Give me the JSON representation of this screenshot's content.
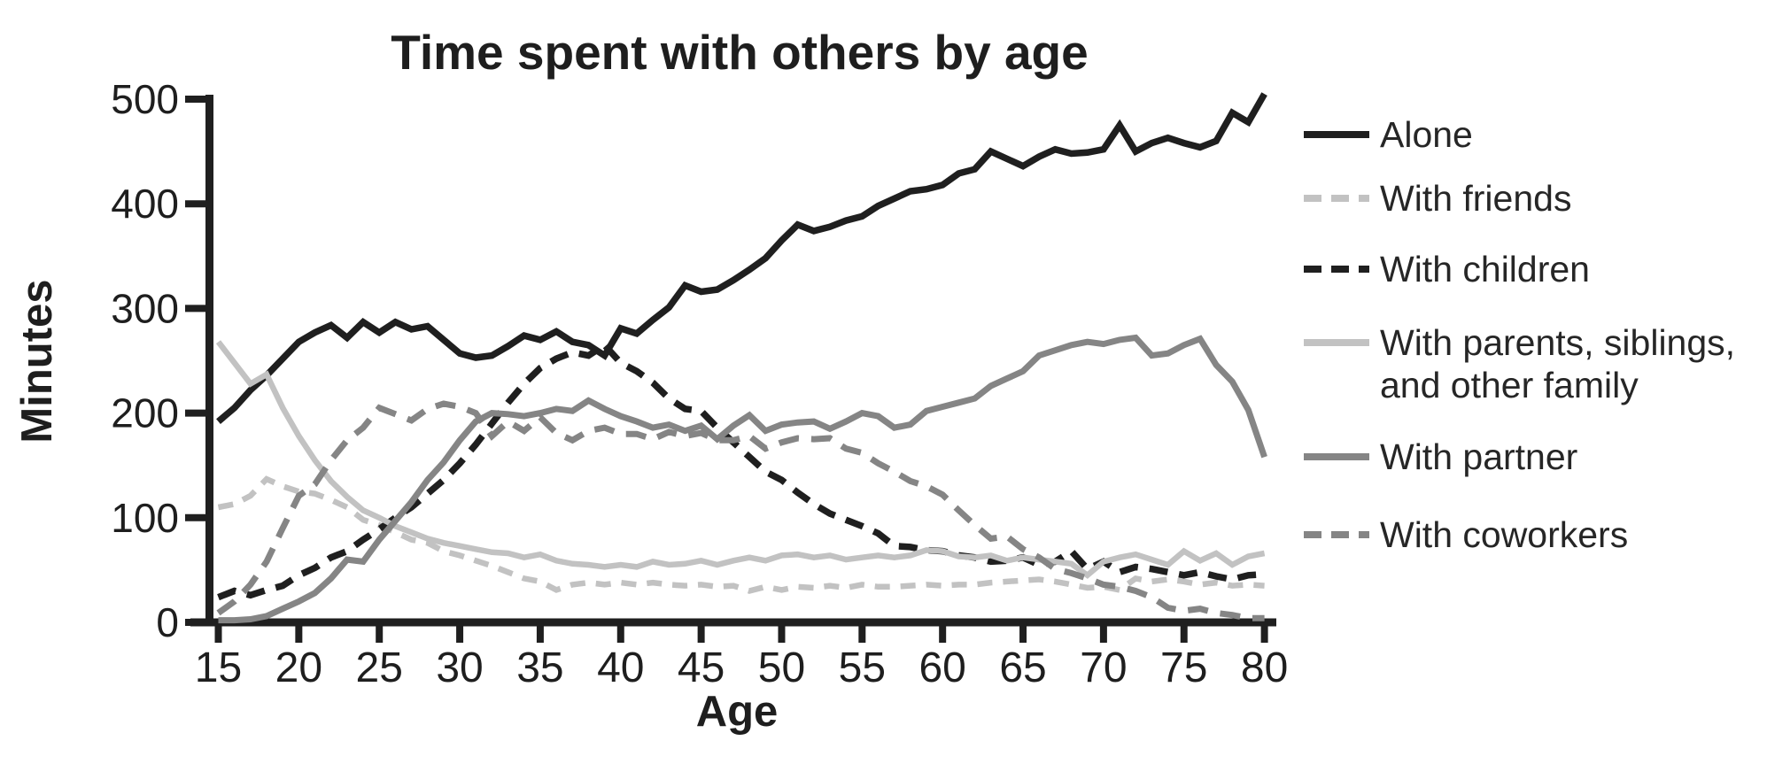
{
  "chart_data": {
    "type": "line",
    "title": "Time spent with others by age",
    "xlabel": "Age",
    "ylabel": "Minutes",
    "xlim": [
      15,
      81
    ],
    "ylim": [
      0,
      500
    ],
    "x_ticks": [
      15,
      20,
      25,
      30,
      35,
      40,
      45,
      50,
      55,
      60,
      65,
      70,
      75,
      80
    ],
    "y_ticks": [
      0,
      100,
      200,
      300,
      400,
      500
    ],
    "grid": false,
    "legend_position": "right",
    "axis_color": "#1f1f1f",
    "background_color": "#ffffff",
    "x": [
      15,
      16,
      17,
      18,
      19,
      20,
      21,
      22,
      23,
      24,
      25,
      26,
      27,
      28,
      29,
      30,
      31,
      32,
      33,
      34,
      35,
      36,
      37,
      38,
      39,
      40,
      41,
      42,
      43,
      44,
      45,
      46,
      47,
      48,
      49,
      50,
      51,
      52,
      53,
      54,
      55,
      56,
      57,
      58,
      59,
      60,
      61,
      62,
      63,
      64,
      65,
      66,
      67,
      68,
      69,
      70,
      71,
      72,
      73,
      74,
      75,
      76,
      77,
      78,
      79,
      80
    ],
    "series": [
      {
        "name": "Alone",
        "legend_lines": [
          "Alone"
        ],
        "color": "#1f1f1f",
        "style": "solid",
        "values": [
          192,
          205,
          222,
          236,
          252,
          268,
          277,
          284,
          272,
          287,
          277,
          287,
          280,
          283,
          270,
          257,
          253,
          255,
          264,
          274,
          270,
          278,
          268,
          265,
          255,
          281,
          276,
          289,
          301,
          322,
          316,
          318,
          327,
          337,
          348,
          365,
          380,
          374,
          378,
          384,
          388,
          398,
          405,
          412,
          414,
          418,
          429,
          433,
          450,
          443,
          436,
          445,
          452,
          448,
          449,
          452,
          475,
          450,
          458,
          463,
          458,
          454,
          460,
          487,
          478,
          505
        ]
      },
      {
        "name": "With friends",
        "legend_lines": [
          "With friends"
        ],
        "color": "#c2c2c2",
        "style": "dashed",
        "values": [
          110,
          113,
          121,
          137,
          130,
          125,
          123,
          117,
          110,
          98,
          93,
          86,
          79,
          76,
          68,
          64,
          59,
          54,
          48,
          42,
          39,
          31,
          36,
          38,
          36,
          38,
          36,
          38,
          36,
          35,
          36,
          34,
          35,
          30,
          34,
          31,
          34,
          33,
          35,
          33,
          36,
          34,
          34,
          35,
          36,
          35,
          36,
          36,
          38,
          39,
          40,
          41,
          39,
          36,
          33,
          34,
          31,
          42,
          39,
          41,
          39,
          36,
          38,
          35,
          36,
          35
        ]
      },
      {
        "name": "With children",
        "legend_lines": [
          "With children"
        ],
        "color": "#1f1f1f",
        "style": "dashed",
        "values": [
          24,
          30,
          26,
          31,
          35,
          45,
          52,
          62,
          68,
          79,
          89,
          100,
          110,
          123,
          136,
          152,
          170,
          190,
          210,
          228,
          243,
          252,
          258,
          255,
          265,
          248,
          240,
          229,
          214,
          204,
          202,
          186,
          172,
          158,
          144,
          136,
          124,
          113,
          104,
          98,
          92,
          85,
          73,
          72,
          69,
          68,
          64,
          62,
          58,
          59,
          62,
          55,
          58,
          68,
          51,
          58,
          48,
          53,
          51,
          48,
          45,
          48,
          44,
          41,
          45,
          46
        ]
      },
      {
        "name": "With parents, siblings, and other family",
        "legend_lines": [
          "With parents, siblings,",
          "and other family"
        ],
        "color": "#c2c2c2",
        "style": "solid",
        "values": [
          268,
          248,
          228,
          237,
          205,
          178,
          155,
          135,
          120,
          107,
          100,
          92,
          86,
          80,
          76,
          73,
          70,
          67,
          66,
          62,
          65,
          59,
          56,
          55,
          53,
          55,
          53,
          58,
          55,
          56,
          59,
          55,
          59,
          62,
          59,
          64,
          65,
          62,
          64,
          60,
          62,
          64,
          62,
          64,
          69,
          68,
          63,
          62,
          64,
          59,
          62,
          60,
          58,
          56,
          45,
          58,
          62,
          65,
          60,
          55,
          68,
          59,
          66,
          55,
          63,
          66
        ]
      },
      {
        "name": "With partner",
        "legend_lines": [
          "With partner"
        ],
        "color": "#858585",
        "style": "solid",
        "values": [
          2,
          2,
          3,
          6,
          13,
          20,
          28,
          42,
          60,
          58,
          79,
          97,
          115,
          136,
          153,
          174,
          192,
          200,
          199,
          197,
          200,
          204,
          202,
          212,
          204,
          197,
          192,
          186,
          189,
          183,
          188,
          175,
          188,
          198,
          183,
          189,
          191,
          192,
          185,
          192,
          200,
          197,
          186,
          189,
          202,
          206,
          210,
          214,
          226,
          233,
          240,
          255,
          260,
          265,
          268,
          266,
          270,
          272,
          255,
          257,
          265,
          271,
          246,
          230,
          203,
          158
        ]
      },
      {
        "name": "With coworkers",
        "legend_lines": [
          "With coworkers"
        ],
        "color": "#858585",
        "style": "dashed",
        "values": [
          9,
          20,
          36,
          58,
          90,
          121,
          132,
          155,
          174,
          186,
          205,
          199,
          193,
          204,
          209,
          206,
          200,
          178,
          192,
          183,
          196,
          181,
          174,
          183,
          186,
          180,
          180,
          175,
          182,
          178,
          181,
          174,
          174,
          178,
          166,
          172,
          176,
          175,
          176,
          166,
          162,
          152,
          144,
          135,
          130,
          122,
          107,
          93,
          80,
          82,
          70,
          62,
          51,
          47,
          42,
          36,
          34,
          30,
          24,
          14,
          11,
          13,
          9,
          7,
          4,
          4
        ]
      }
    ]
  }
}
